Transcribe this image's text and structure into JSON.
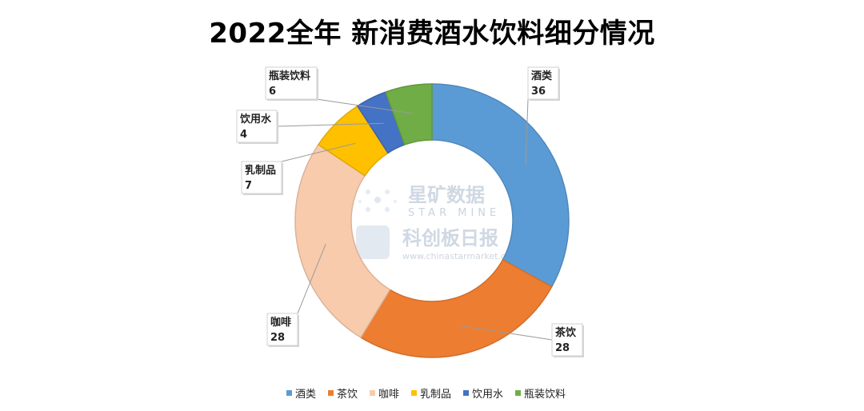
{
  "chart_data": {
    "type": "pie",
    "title": "2022全年 新消费酒水饮料细分情况",
    "categories": [
      "酒类",
      "茶饮",
      "咖啡",
      "乳制品",
      "饮用水",
      "瓶装饮料"
    ],
    "values": [
      36,
      28,
      28,
      7,
      4,
      6
    ],
    "colors": [
      "#5b9bd5",
      "#ed7d31",
      "#f8cbad",
      "#ffc000",
      "#4472c4",
      "#70ad47"
    ],
    "donut": true,
    "legend": "bottom"
  },
  "watermark": {
    "star_mine_cn": "星矿数据",
    "star_mine_en": "STAR MINE",
    "publisher": "科创板日报",
    "url": "www.chinastarmarket.cn"
  }
}
